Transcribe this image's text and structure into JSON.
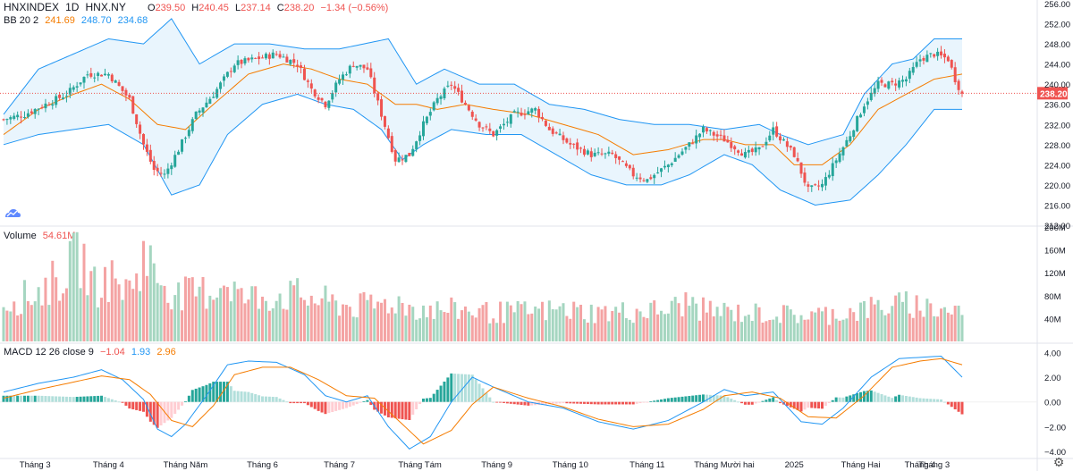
{
  "header": {
    "symbol": "HNXINDEX",
    "interval": "1D",
    "exchange": "HNX.NY",
    "open_label": "O",
    "open": "239.50",
    "high_label": "H",
    "high": "240.45",
    "low_label": "L",
    "low": "237.14",
    "close_label": "C",
    "close": "238.20",
    "change": "−1.34 (−0.56%)"
  },
  "bb_legend": {
    "name": "BB 20 2",
    "basis": "241.69",
    "upper": "248.70",
    "lower": "234.68"
  },
  "volume_legend": {
    "name": "Volume",
    "value": "54.61M"
  },
  "macd_legend": {
    "name": "MACD 12 26 close 9",
    "hist": "−1.04",
    "macd": "1.93",
    "signal": "2.96"
  },
  "price_tag": "238.20",
  "settings_icon": "gear-icon",
  "logo_icon": "tradingview-cloud-icon",
  "colors": {
    "up": "#26a69a",
    "down": "#ef5350",
    "bb_band": "#2196f3",
    "bb_basis": "#f57c00",
    "bb_fill": "#e3f2fd",
    "macd": "#2196f3",
    "signal": "#f57c00",
    "vol_up": "#a5d6c0",
    "vol_down": "#f4a3a3",
    "hist_up_strong": "#26a69a",
    "hist_up_weak": "#b2dfdb",
    "hist_down_strong": "#ef5350",
    "hist_down_weak": "#ffcdd2"
  },
  "chart_data": [
    {
      "type": "candlestick",
      "title": "HNXINDEX 1D HNX.NY",
      "ylim": [
        212,
        256
      ],
      "y_ticks": [
        "256.00",
        "252.00",
        "248.00",
        "244.00",
        "240.00",
        "236.00",
        "232.00",
        "228.00",
        "224.00",
        "220.00",
        "216.00",
        "212.00"
      ],
      "x_ticks": [
        "Tháng 3",
        "Tháng 4",
        "Tháng Năm",
        "Tháng 6",
        "Tháng 7",
        "Tháng Tám",
        "Tháng 9",
        "Tháng 10",
        "Tháng 11",
        "Tháng Mười hai",
        "2025",
        "Tháng Hai",
        "Tháng 3",
        "Tháng 4"
      ],
      "close_anchors": [
        [
          0,
          233
        ],
        [
          6,
          234
        ],
        [
          12,
          236
        ],
        [
          18,
          238
        ],
        [
          24,
          242
        ],
        [
          30,
          242
        ],
        [
          36,
          237
        ],
        [
          40,
          228
        ],
        [
          43,
          223
        ],
        [
          46,
          222
        ],
        [
          50,
          227
        ],
        [
          55,
          234
        ],
        [
          60,
          238
        ],
        [
          66,
          244
        ],
        [
          72,
          245
        ],
        [
          78,
          246
        ],
        [
          84,
          244
        ],
        [
          88,
          239
        ],
        [
          92,
          236
        ],
        [
          96,
          241
        ],
        [
          100,
          244
        ],
        [
          104,
          243
        ],
        [
          108,
          234
        ],
        [
          112,
          225
        ],
        [
          116,
          226
        ],
        [
          120,
          232
        ],
        [
          124,
          237
        ],
        [
          128,
          240
        ],
        [
          132,
          236
        ],
        [
          136,
          232
        ],
        [
          140,
          230
        ],
        [
          146,
          234
        ],
        [
          152,
          235
        ],
        [
          156,
          231
        ],
        [
          162,
          228
        ],
        [
          168,
          226
        ],
        [
          174,
          226
        ],
        [
          180,
          222
        ],
        [
          184,
          221
        ],
        [
          190,
          224
        ],
        [
          196,
          228
        ],
        [
          200,
          231
        ],
        [
          206,
          229
        ],
        [
          212,
          226
        ],
        [
          216,
          227
        ],
        [
          220,
          231
        ],
        [
          226,
          226
        ],
        [
          230,
          219
        ],
        [
          234,
          220
        ],
        [
          238,
          225
        ],
        [
          242,
          230
        ],
        [
          246,
          236
        ],
        [
          250,
          240
        ],
        [
          254,
          240
        ],
        [
          258,
          241
        ],
        [
          262,
          245
        ],
        [
          266,
          246
        ],
        [
          270,
          245
        ],
        [
          272,
          241
        ],
        [
          274,
          238
        ]
      ],
      "bb_basis": [
        [
          0,
          230
        ],
        [
          10,
          235
        ],
        [
          20,
          238
        ],
        [
          28,
          240
        ],
        [
          36,
          237
        ],
        [
          44,
          232
        ],
        [
          52,
          231
        ],
        [
          60,
          236
        ],
        [
          70,
          242
        ],
        [
          80,
          244
        ],
        [
          88,
          243
        ],
        [
          96,
          241
        ],
        [
          104,
          240
        ],
        [
          112,
          236
        ],
        [
          118,
          236
        ],
        [
          124,
          235
        ],
        [
          132,
          236
        ],
        [
          140,
          235
        ],
        [
          150,
          234
        ],
        [
          160,
          232
        ],
        [
          170,
          230
        ],
        [
          180,
          226
        ],
        [
          190,
          227
        ],
        [
          200,
          229
        ],
        [
          206,
          229
        ],
        [
          212,
          228
        ],
        [
          220,
          228
        ],
        [
          226,
          224
        ],
        [
          234,
          224
        ],
        [
          242,
          228
        ],
        [
          250,
          235
        ],
        [
          258,
          238
        ],
        [
          266,
          241
        ],
        [
          274,
          242
        ]
      ],
      "bb_upper": [
        [
          0,
          234
        ],
        [
          10,
          243
        ],
        [
          20,
          246
        ],
        [
          30,
          249
        ],
        [
          40,
          248
        ],
        [
          48,
          253
        ],
        [
          56,
          244
        ],
        [
          66,
          248
        ],
        [
          76,
          248
        ],
        [
          86,
          247
        ],
        [
          96,
          247
        ],
        [
          110,
          249
        ],
        [
          118,
          240
        ],
        [
          126,
          243
        ],
        [
          136,
          240
        ],
        [
          146,
          240
        ],
        [
          156,
          236
        ],
        [
          166,
          235
        ],
        [
          176,
          233
        ],
        [
          186,
          232
        ],
        [
          196,
          232
        ],
        [
          206,
          231
        ],
        [
          216,
          232
        ],
        [
          222,
          230
        ],
        [
          230,
          228
        ],
        [
          240,
          230
        ],
        [
          246,
          238
        ],
        [
          254,
          244
        ],
        [
          260,
          245
        ],
        [
          266,
          249
        ],
        [
          274,
          249
        ]
      ],
      "bb_lower": [
        [
          0,
          228
        ],
        [
          10,
          230
        ],
        [
          20,
          231
        ],
        [
          30,
          232
        ],
        [
          40,
          228
        ],
        [
          48,
          218
        ],
        [
          56,
          220
        ],
        [
          64,
          230
        ],
        [
          74,
          236
        ],
        [
          84,
          238
        ],
        [
          92,
          236
        ],
        [
          100,
          235
        ],
        [
          108,
          231
        ],
        [
          114,
          225
        ],
        [
          120,
          228
        ],
        [
          128,
          231
        ],
        [
          138,
          230
        ],
        [
          148,
          230
        ],
        [
          158,
          226
        ],
        [
          168,
          222
        ],
        [
          178,
          220
        ],
        [
          188,
          220
        ],
        [
          196,
          222
        ],
        [
          206,
          226
        ],
        [
          214,
          224
        ],
        [
          222,
          219
        ],
        [
          232,
          216
        ],
        [
          242,
          217
        ],
        [
          250,
          222
        ],
        [
          258,
          228
        ],
        [
          266,
          235
        ],
        [
          274,
          235
        ]
      ]
    },
    {
      "type": "bar",
      "title": "Volume",
      "ylim": [
        0,
        200
      ],
      "unit": "M",
      "y_ticks": [
        "200M",
        "160M",
        "120M",
        "80M",
        "40M"
      ],
      "volume_anchors": [
        [
          0,
          70
        ],
        [
          8,
          80
        ],
        [
          16,
          110
        ],
        [
          22,
          150
        ],
        [
          26,
          95
        ],
        [
          30,
          110
        ],
        [
          36,
          90
        ],
        [
          40,
          150
        ],
        [
          44,
          115
        ],
        [
          50,
          80
        ],
        [
          56,
          85
        ],
        [
          60,
          90
        ],
        [
          64,
          110
        ],
        [
          68,
          75
        ],
        [
          76,
          80
        ],
        [
          84,
          80
        ],
        [
          92,
          70
        ],
        [
          100,
          60
        ],
        [
          108,
          65
        ],
        [
          112,
          70
        ],
        [
          116,
          60
        ],
        [
          124,
          55
        ],
        [
          132,
          55
        ],
        [
          140,
          50
        ],
        [
          150,
          52
        ],
        [
          160,
          55
        ],
        [
          170,
          50
        ],
        [
          180,
          52
        ],
        [
          190,
          55
        ],
        [
          196,
          70
        ],
        [
          200,
          55
        ],
        [
          210,
          50
        ],
        [
          220,
          48
        ],
        [
          230,
          45
        ],
        [
          240,
          50
        ],
        [
          250,
          60
        ],
        [
          260,
          65
        ],
        [
          268,
          55
        ],
        [
          274,
          55
        ]
      ]
    },
    {
      "type": "line+histogram",
      "title": "MACD 12 26 close 9",
      "ylim": [
        -4.5,
        4.6
      ],
      "y_ticks": [
        "4.00",
        "2.00",
        "0.00",
        "−2.00",
        "−4.00"
      ],
      "macd_anchors": [
        [
          0,
          0.8
        ],
        [
          10,
          1.5
        ],
        [
          20,
          2.0
        ],
        [
          28,
          2.6
        ],
        [
          34,
          1.8
        ],
        [
          40,
          0.2
        ],
        [
          44,
          -2.2
        ],
        [
          48,
          -2.8
        ],
        [
          52,
          -1.8
        ],
        [
          58,
          0.5
        ],
        [
          64,
          3.0
        ],
        [
          70,
          3.3
        ],
        [
          78,
          3.2
        ],
        [
          86,
          2.2
        ],
        [
          92,
          0.5
        ],
        [
          98,
          0.0
        ],
        [
          104,
          0.5
        ],
        [
          110,
          -2.0
        ],
        [
          116,
          -3.8
        ],
        [
          122,
          -2.8
        ],
        [
          128,
          0.0
        ],
        [
          134,
          2.0
        ],
        [
          140,
          1.2
        ],
        [
          150,
          0.0
        ],
        [
          160,
          -0.5
        ],
        [
          170,
          -1.6
        ],
        [
          180,
          -2.2
        ],
        [
          190,
          -1.5
        ],
        [
          200,
          0.0
        ],
        [
          206,
          1.0
        ],
        [
          212,
          0.5
        ],
        [
          220,
          0.8
        ],
        [
          228,
          -1.6
        ],
        [
          234,
          -1.8
        ],
        [
          240,
          -0.5
        ],
        [
          248,
          2.0
        ],
        [
          256,
          3.5
        ],
        [
          262,
          3.6
        ],
        [
          268,
          3.7
        ],
        [
          274,
          2.0
        ]
      ],
      "signal_anchors": [
        [
          0,
          0.3
        ],
        [
          10,
          1.0
        ],
        [
          20,
          1.6
        ],
        [
          28,
          2.1
        ],
        [
          36,
          1.8
        ],
        [
          42,
          0.6
        ],
        [
          48,
          -1.5
        ],
        [
          54,
          -2.0
        ],
        [
          60,
          -0.3
        ],
        [
          66,
          2.2
        ],
        [
          74,
          2.8
        ],
        [
          82,
          2.8
        ],
        [
          90,
          1.8
        ],
        [
          98,
          0.5
        ],
        [
          106,
          0.3
        ],
        [
          114,
          -1.8
        ],
        [
          120,
          -3.4
        ],
        [
          128,
          -2.3
        ],
        [
          134,
          -0.2
        ],
        [
          140,
          1.2
        ],
        [
          150,
          0.3
        ],
        [
          160,
          -0.4
        ],
        [
          170,
          -1.4
        ],
        [
          180,
          -2.0
        ],
        [
          190,
          -1.8
        ],
        [
          200,
          -0.6
        ],
        [
          206,
          0.5
        ],
        [
          214,
          0.8
        ],
        [
          222,
          0.3
        ],
        [
          230,
          -1.2
        ],
        [
          238,
          -1.3
        ],
        [
          246,
          0.5
        ],
        [
          254,
          2.8
        ],
        [
          262,
          3.3
        ],
        [
          268,
          3.5
        ],
        [
          274,
          3.0
        ]
      ]
    }
  ]
}
